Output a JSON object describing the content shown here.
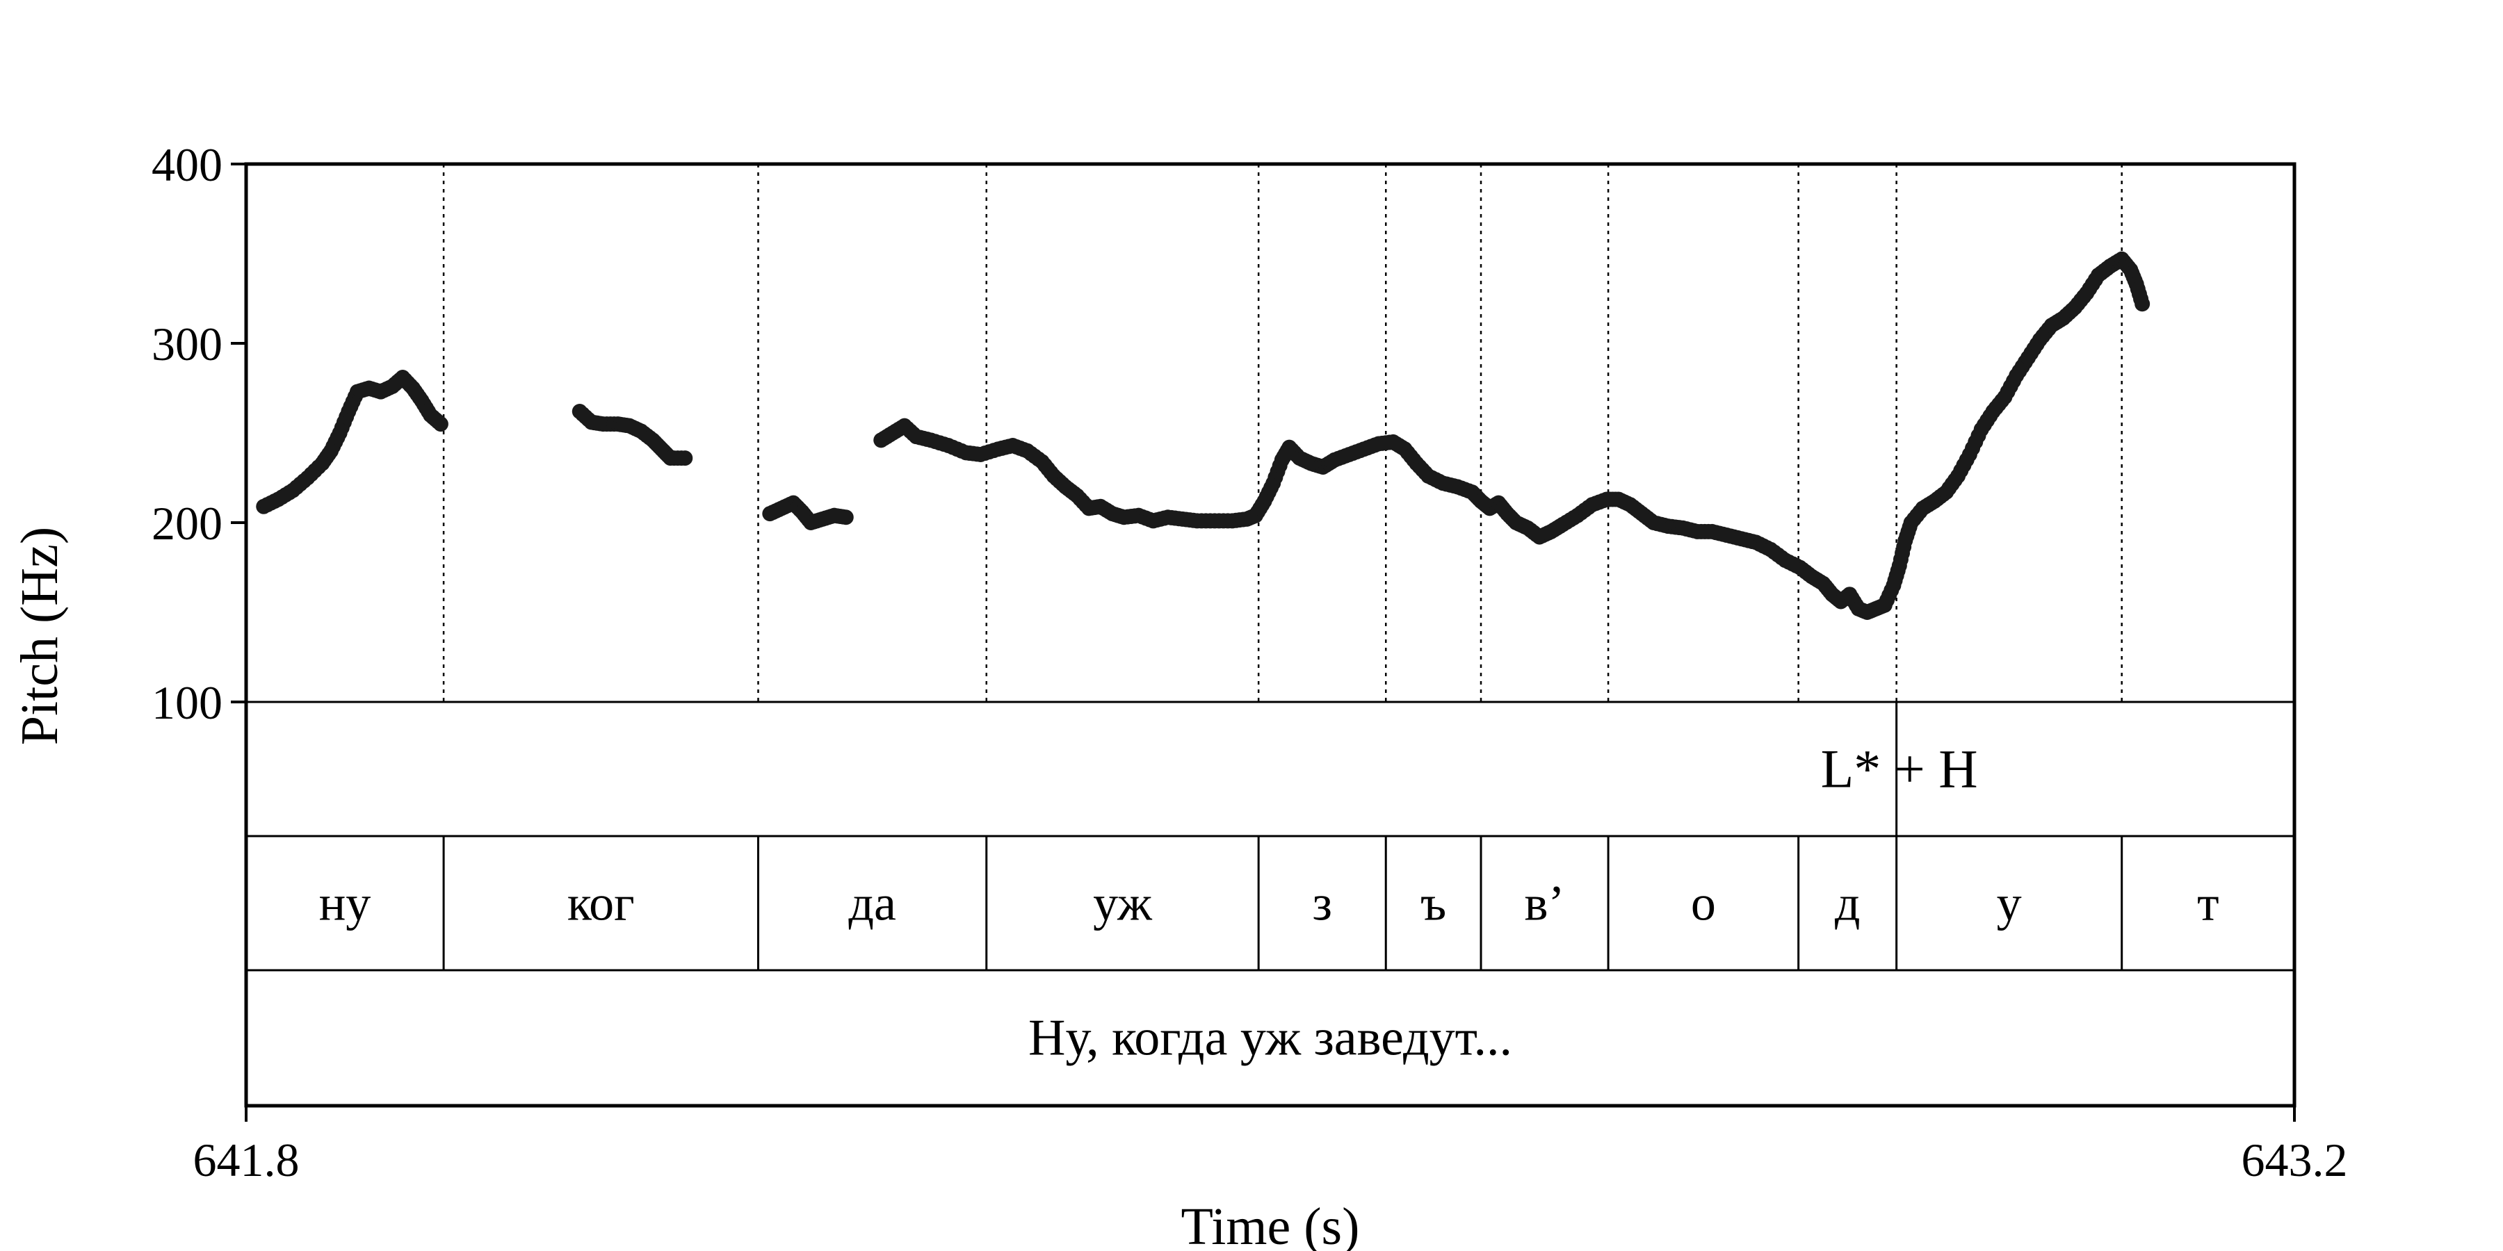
{
  "chart_data": {
    "type": "scatter",
    "ylabel": "Pitch (Hz)",
    "xlabel": "Time (s)",
    "ylim": [
      100,
      400
    ],
    "yticks": [
      "100",
      "200",
      "300",
      "400"
    ],
    "xlim": [
      641.8,
      643.2
    ],
    "xtick_labels": [
      "641.8",
      "643.2"
    ],
    "grid": false,
    "boundaries": [
      641.935,
      642.15,
      642.306,
      642.492,
      642.579,
      642.644,
      642.731,
      642.861,
      642.928,
      643.082
    ],
    "segments": [
      {
        "label": "ну",
        "start": 641.8,
        "end": 641.935
      },
      {
        "label": "ког",
        "start": 641.935,
        "end": 642.15
      },
      {
        "label": "да",
        "start": 642.15,
        "end": 642.306
      },
      {
        "label": "уж",
        "start": 642.306,
        "end": 642.492
      },
      {
        "label": "з",
        "start": 642.492,
        "end": 642.579
      },
      {
        "label": "ъ",
        "start": 642.579,
        "end": 642.644
      },
      {
        "label": "в’",
        "start": 642.644,
        "end": 642.731
      },
      {
        "label": "о",
        "start": 642.731,
        "end": 642.861
      },
      {
        "label": "д",
        "start": 642.861,
        "end": 642.928
      },
      {
        "label": "у",
        "start": 642.928,
        "end": 643.082
      },
      {
        "label": "т",
        "start": 643.082,
        "end": 643.2
      }
    ],
    "tone": {
      "label": "L* + H",
      "time": 642.928
    },
    "utterance": "Ну, когда уж заведут...",
    "series": [
      {
        "points": [
          [
            641.812,
            209
          ],
          [
            641.822,
            213
          ],
          [
            641.832,
            218
          ],
          [
            641.842,
            225
          ],
          [
            641.852,
            233
          ],
          [
            641.858,
            240
          ],
          [
            641.864,
            250
          ],
          [
            641.87,
            262
          ],
          [
            641.876,
            273
          ],
          [
            641.884,
            275
          ],
          [
            641.892,
            273
          ],
          [
            641.9,
            276
          ],
          [
            641.907,
            281
          ],
          [
            641.914,
            275
          ],
          [
            641.92,
            268
          ],
          [
            641.926,
            260
          ],
          [
            641.933,
            255
          ]
        ]
      },
      {
        "points": [
          [
            642.028,
            262
          ],
          [
            642.036,
            256
          ],
          [
            642.044,
            255
          ],
          [
            642.054,
            255
          ],
          [
            642.062,
            254
          ],
          [
            642.07,
            251
          ],
          [
            642.078,
            246
          ],
          [
            642.084,
            241
          ],
          [
            642.09,
            236
          ],
          [
            642.1,
            236
          ]
        ]
      },
      {
        "points": [
          [
            642.158,
            205
          ],
          [
            642.166,
            208
          ],
          [
            642.174,
            211
          ],
          [
            642.18,
            206
          ],
          [
            642.186,
            200
          ],
          [
            642.194,
            202
          ],
          [
            642.202,
            204
          ],
          [
            642.21,
            203
          ]
        ]
      },
      {
        "points": [
          [
            642.234,
            246
          ],
          [
            642.242,
            250
          ],
          [
            642.25,
            254
          ],
          [
            642.258,
            248
          ],
          [
            642.268,
            246
          ],
          [
            642.28,
            243
          ],
          [
            642.292,
            239
          ],
          [
            642.302,
            238
          ],
          [
            642.314,
            241
          ],
          [
            642.324,
            243
          ],
          [
            642.334,
            240
          ],
          [
            642.344,
            234
          ],
          [
            642.352,
            226
          ],
          [
            642.36,
            220
          ],
          [
            642.368,
            215
          ],
          [
            642.376,
            208
          ],
          [
            642.384,
            209
          ],
          [
            642.392,
            205
          ],
          [
            642.4,
            203
          ],
          [
            642.41,
            204
          ],
          [
            642.42,
            201
          ],
          [
            642.43,
            203
          ],
          [
            642.44,
            202
          ],
          [
            642.45,
            201
          ],
          [
            642.462,
            201
          ],
          [
            642.474,
            201
          ],
          [
            642.484,
            202
          ],
          [
            642.49,
            204
          ],
          [
            642.496,
            212
          ],
          [
            642.502,
            222
          ],
          [
            642.508,
            235
          ],
          [
            642.513,
            242
          ],
          [
            642.52,
            236
          ],
          [
            642.528,
            233
          ],
          [
            642.536,
            231
          ],
          [
            642.544,
            235
          ],
          [
            642.554,
            238
          ],
          [
            642.564,
            241
          ],
          [
            642.574,
            244
          ],
          [
            642.584,
            245
          ],
          [
            642.592,
            241
          ],
          [
            642.6,
            233
          ],
          [
            642.608,
            226
          ],
          [
            642.618,
            222
          ],
          [
            642.628,
            220
          ],
          [
            642.638,
            217
          ],
          [
            642.644,
            212
          ],
          [
            642.65,
            208
          ],
          [
            642.656,
            211
          ],
          [
            642.662,
            205
          ],
          [
            642.668,
            200
          ],
          [
            642.676,
            197
          ],
          [
            642.684,
            192
          ],
          [
            642.692,
            195
          ],
          [
            642.7,
            199
          ],
          [
            642.71,
            204
          ],
          [
            642.72,
            210
          ],
          [
            642.73,
            213
          ],
          [
            642.738,
            213
          ],
          [
            642.746,
            210
          ],
          [
            642.754,
            205
          ],
          [
            642.762,
            200
          ],
          [
            642.772,
            198
          ],
          [
            642.782,
            197
          ],
          [
            642.792,
            195
          ],
          [
            642.802,
            195
          ],
          [
            642.812,
            193
          ],
          [
            642.822,
            191
          ],
          [
            642.832,
            189
          ],
          [
            642.842,
            185
          ],
          [
            642.852,
            179
          ],
          [
            642.862,
            175
          ],
          [
            642.87,
            170
          ],
          [
            642.878,
            166
          ],
          [
            642.884,
            160
          ],
          [
            642.89,
            156
          ],
          [
            642.896,
            160
          ],
          [
            642.902,
            152
          ],
          [
            642.908,
            150
          ],
          [
            642.914,
            152
          ],
          [
            642.92,
            154
          ],
          [
            642.926,
            165
          ],
          [
            642.93,
            176
          ],
          [
            642.934,
            190
          ],
          [
            642.938,
            200
          ],
          [
            642.946,
            208
          ],
          [
            642.954,
            212
          ],
          [
            642.962,
            217
          ],
          [
            642.97,
            226
          ],
          [
            642.978,
            238
          ],
          [
            642.986,
            252
          ],
          [
            642.994,
            262
          ],
          [
            643.002,
            270
          ],
          [
            643.01,
            282
          ],
          [
            643.018,
            292
          ],
          [
            643.026,
            302
          ],
          [
            643.034,
            310
          ],
          [
            643.042,
            314
          ],
          [
            643.05,
            320
          ],
          [
            643.058,
            328
          ],
          [
            643.066,
            338
          ],
          [
            643.074,
            343
          ],
          [
            643.082,
            347
          ],
          [
            643.088,
            341
          ],
          [
            643.092,
            333
          ],
          [
            643.096,
            322
          ]
        ]
      }
    ]
  }
}
